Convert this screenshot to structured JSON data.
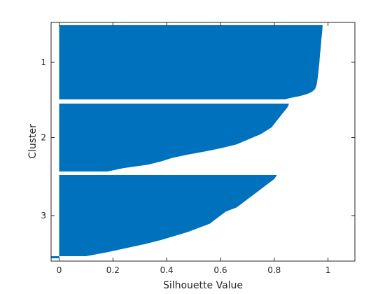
{
  "chart_data": {
    "type": "bar",
    "orientation": "horizontal",
    "title": "",
    "xlabel": "Silhouette Value",
    "ylabel": "Cluster",
    "xlim": [
      -0.03,
      1.1
    ],
    "xticks": [
      "0",
      "0.2",
      "0.4",
      "0.6",
      "0.8",
      "1"
    ],
    "xtick_values": [
      0,
      0.2,
      0.4,
      0.6,
      0.8,
      1.0
    ],
    "grid": false,
    "legend": "none",
    "bar_color": "#0072BD",
    "clusters": [
      {
        "label": "1",
        "silhouette_profile": [
          [
            0.0,
            0.98
          ],
          [
            0.1,
            0.978
          ],
          [
            0.2,
            0.975
          ],
          [
            0.3,
            0.973
          ],
          [
            0.4,
            0.97
          ],
          [
            0.5,
            0.968
          ],
          [
            0.6,
            0.965
          ],
          [
            0.7,
            0.962
          ],
          [
            0.8,
            0.958
          ],
          [
            0.86,
            0.952
          ],
          [
            0.9,
            0.94
          ],
          [
            0.93,
            0.92
          ],
          [
            0.96,
            0.89
          ],
          [
            0.98,
            0.86
          ],
          [
            1.0,
            0.84
          ]
        ]
      },
      {
        "label": "2",
        "silhouette_profile": [
          [
            0.0,
            0.855
          ],
          [
            0.05,
            0.85
          ],
          [
            0.1,
            0.84
          ],
          [
            0.15,
            0.83
          ],
          [
            0.2,
            0.82
          ],
          [
            0.25,
            0.81
          ],
          [
            0.3,
            0.8
          ],
          [
            0.35,
            0.79
          ],
          [
            0.4,
            0.77
          ],
          [
            0.45,
            0.75
          ],
          [
            0.5,
            0.72
          ],
          [
            0.55,
            0.69
          ],
          [
            0.6,
            0.66
          ],
          [
            0.65,
            0.61
          ],
          [
            0.7,
            0.55
          ],
          [
            0.75,
            0.48
          ],
          [
            0.8,
            0.42
          ],
          [
            0.85,
            0.38
          ],
          [
            0.9,
            0.33
          ],
          [
            0.95,
            0.24
          ],
          [
            1.0,
            0.18
          ]
        ]
      },
      {
        "label": "3",
        "silhouette_profile": [
          [
            0.0,
            0.81
          ],
          [
            0.05,
            0.8
          ],
          [
            0.1,
            0.78
          ],
          [
            0.15,
            0.76
          ],
          [
            0.2,
            0.74
          ],
          [
            0.25,
            0.72
          ],
          [
            0.3,
            0.7
          ],
          [
            0.35,
            0.68
          ],
          [
            0.4,
            0.66
          ],
          [
            0.45,
            0.62
          ],
          [
            0.5,
            0.6
          ],
          [
            0.55,
            0.58
          ],
          [
            0.6,
            0.56
          ],
          [
            0.65,
            0.52
          ],
          [
            0.7,
            0.48
          ],
          [
            0.75,
            0.43
          ],
          [
            0.8,
            0.38
          ],
          [
            0.85,
            0.32
          ],
          [
            0.9,
            0.25
          ],
          [
            0.95,
            0.18
          ],
          [
            1.0,
            0.1
          ]
        ]
      }
    ],
    "outlier": {
      "cluster": "3",
      "value": -0.03
    }
  }
}
